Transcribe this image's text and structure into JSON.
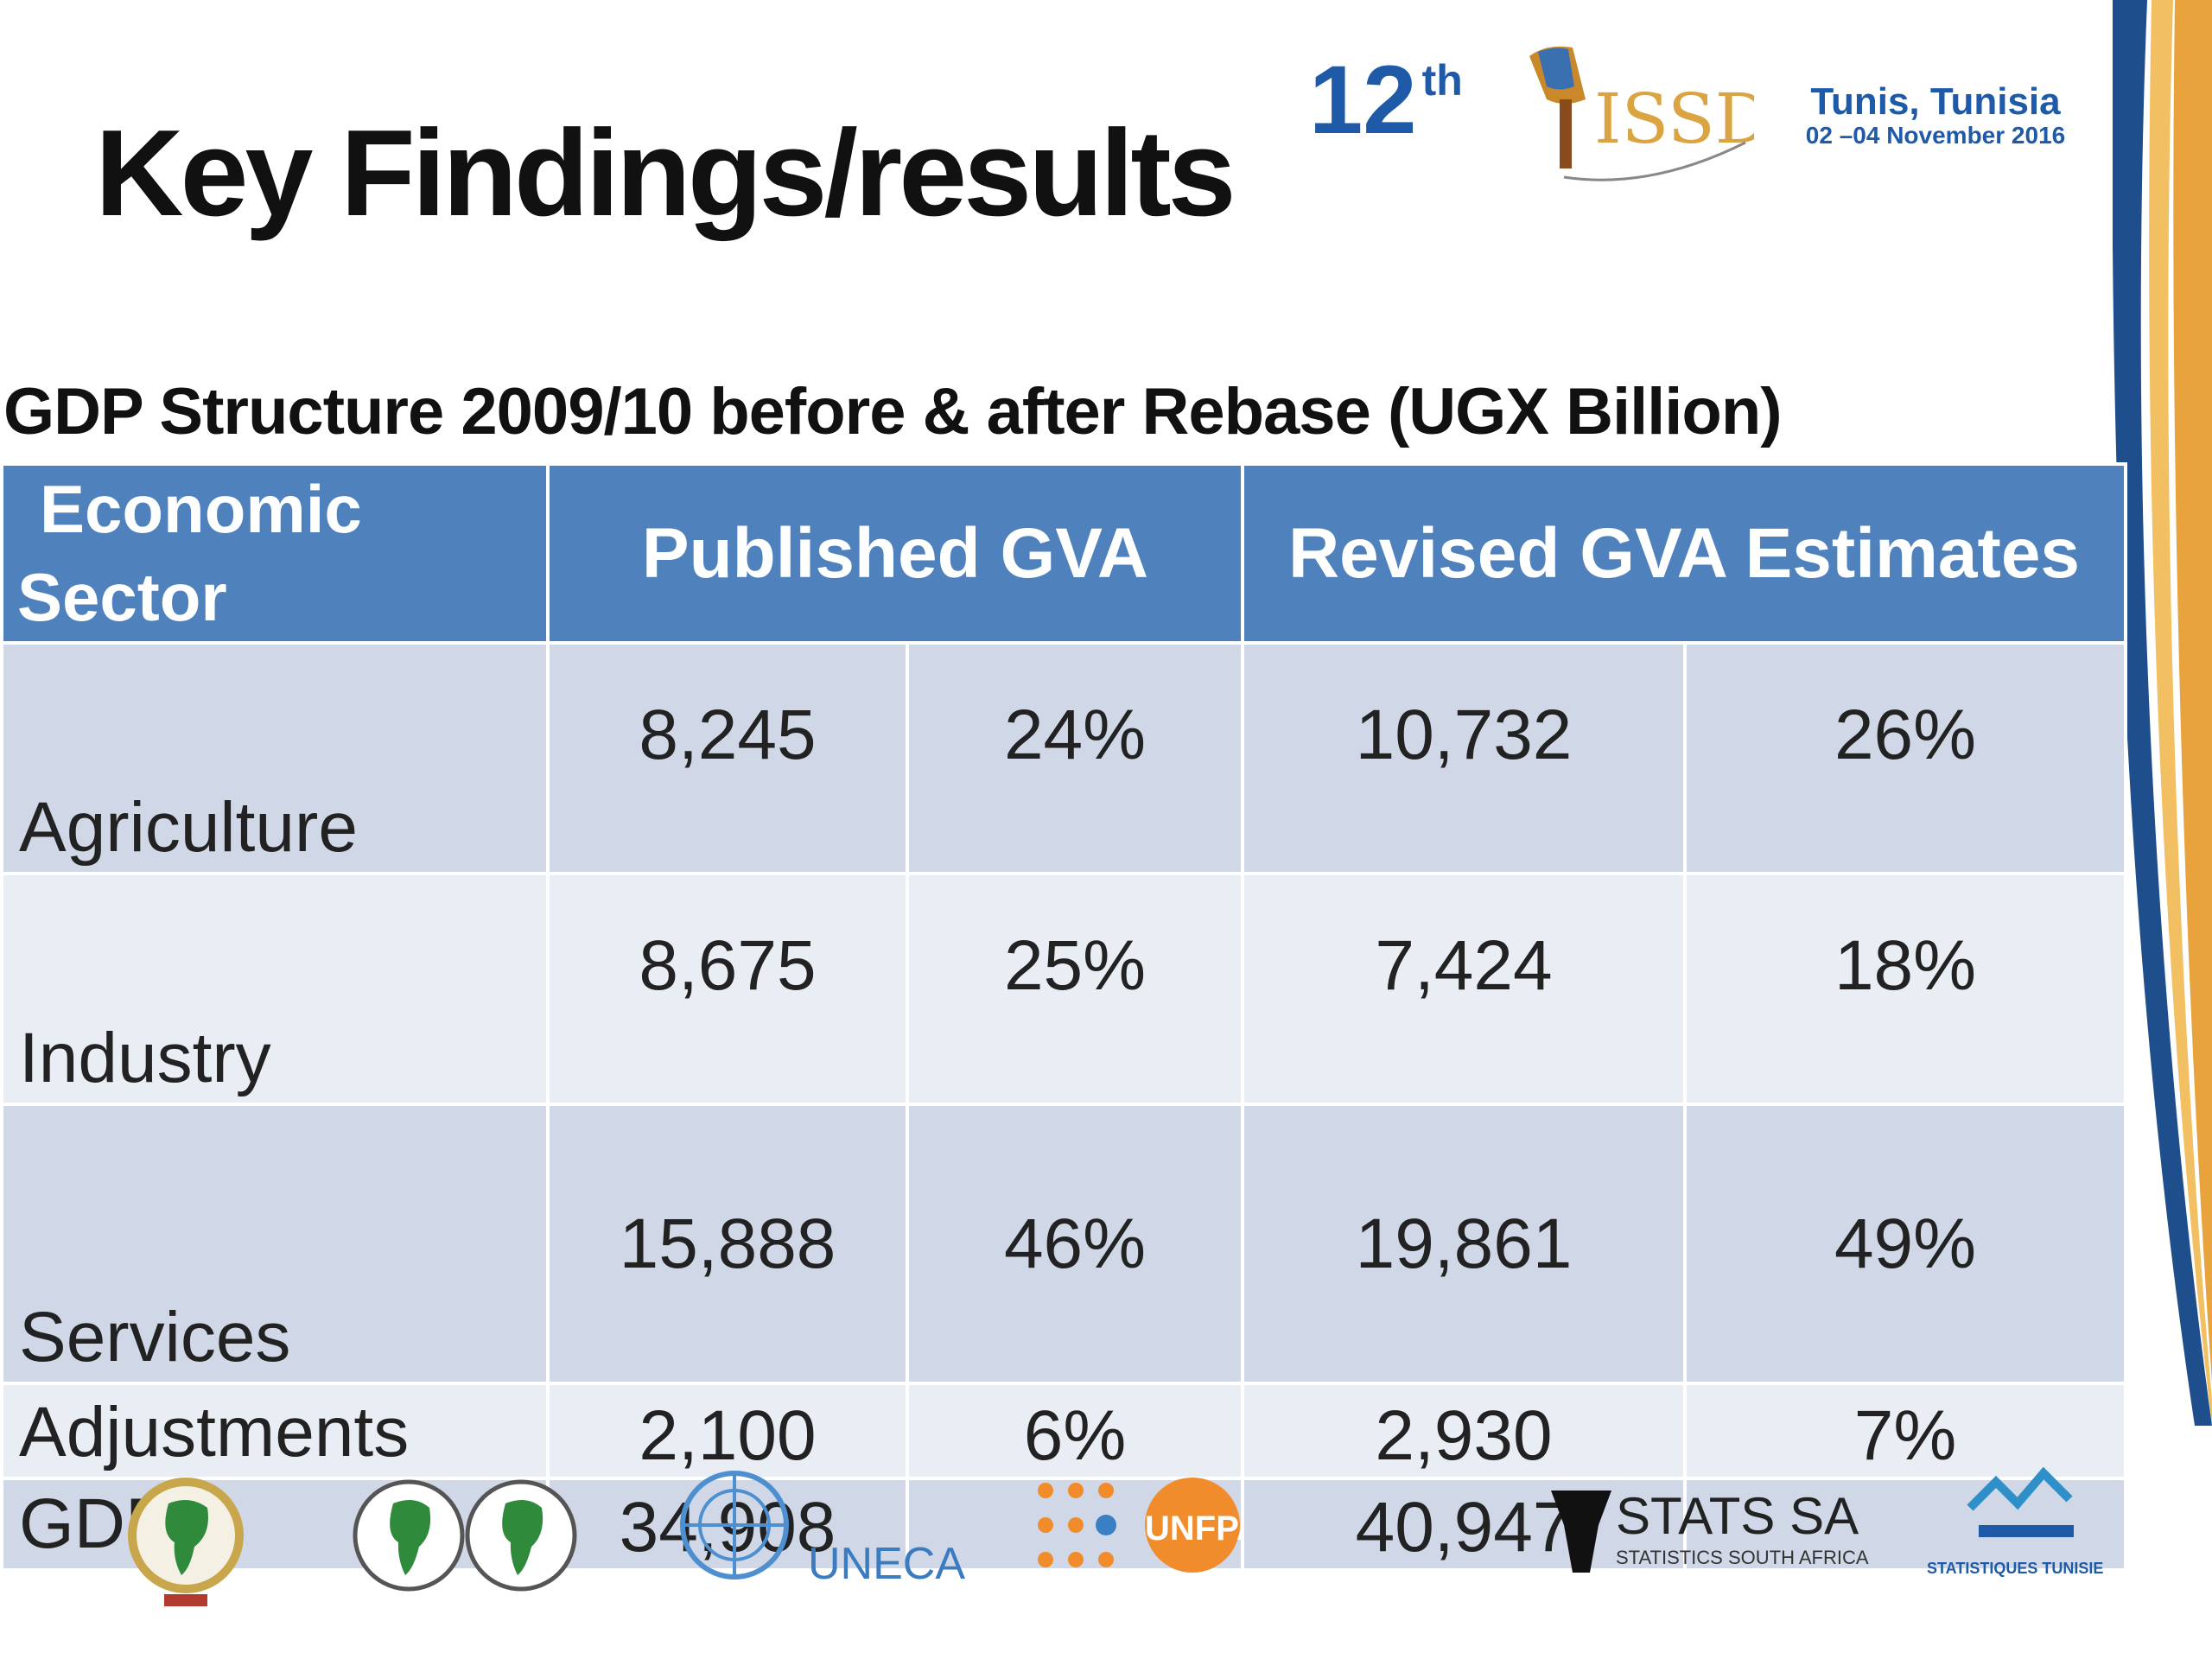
{
  "slide": {
    "title": "Key Findings/results"
  },
  "header": {
    "edition_number": "12",
    "edition_suffix": "th",
    "logo_text": "ISSD",
    "venue_city": "Tunis, Tunisia",
    "venue_dates": "02 –04 November 2016"
  },
  "table": {
    "caption": "GDP Structure 2009/10 before & after Rebase (UGX Billion)",
    "header": {
      "sector_line1": "Economic",
      "sector_line2": "Sector",
      "published": "Published GVA",
      "revised": "Revised GVA Estimates"
    },
    "rows": [
      {
        "sector": "Agriculture",
        "pub_value": "8,245",
        "pub_share": "24%",
        "rev_value": "10,732",
        "rev_share": "26%"
      },
      {
        "sector": "Industry",
        "pub_value": "8,675",
        "pub_share": "25%",
        "rev_value": "7,424",
        "rev_share": "18%"
      },
      {
        "sector": "Services",
        "pub_value": "15,888",
        "pub_share": "46%",
        "rev_value": "19,861",
        "rev_share": "49%"
      },
      {
        "sector": "Adjustments",
        "pub_value": "2,100",
        "pub_share": "6%",
        "rev_value": "2,930",
        "rev_share": "7%"
      },
      {
        "sector": "GDP",
        "pub_value": "34,908",
        "pub_share": "",
        "rev_value": "40,947",
        "rev_share": ""
      }
    ]
  },
  "footer": {
    "logos": [
      "african-union-logo",
      "afdb-logo",
      "un-emblem",
      "unfpa-logo",
      "stats-sa-logo",
      "statistiques-tunisie-logo"
    ],
    "uneca": "UNECA",
    "unfpa": "UNFPA",
    "stats_sa": "STATS SA",
    "stats_sa_sub": "STATISTICS SOUTH AFRICA",
    "tunisie_sub": "STATISTIQUES TUNISIE"
  },
  "colors": {
    "header_blue": "#4f81bd",
    "row_dark": "#d0d8e8",
    "row_light": "#e9edf4",
    "brand_blue": "#1f5aa8"
  }
}
